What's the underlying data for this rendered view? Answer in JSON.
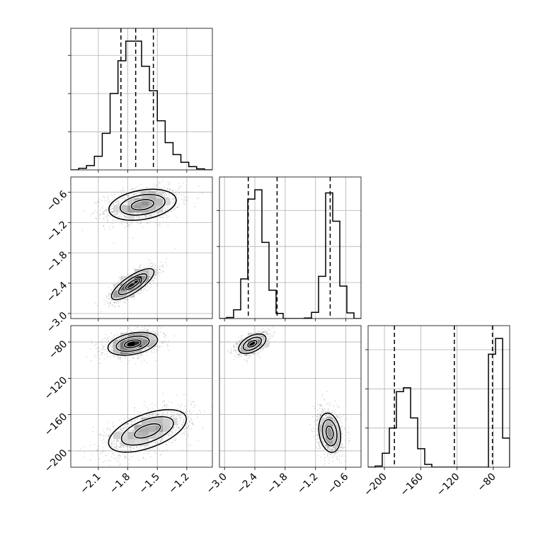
{
  "chart_data": {
    "type": "corner",
    "grid": true,
    "parameters": [
      {
        "ticks": [
          -2.1,
          -1.8,
          -1.5,
          -1.2
        ],
        "tick_labels": [
          "−2.1",
          "−1.8",
          "−1.5",
          "−1.2"
        ],
        "range": [
          -2.38,
          -0.94
        ],
        "quantiles": [
          -1.87,
          -1.72,
          -1.54
        ],
        "histogram": {
          "edges": [
            -2.38,
            -2.3,
            -2.22,
            -2.14,
            -2.06,
            -1.98,
            -1.9,
            -1.82,
            -1.74,
            -1.66,
            -1.58,
            -1.5,
            -1.42,
            -1.34,
            -1.26,
            -1.18,
            -1.1,
            -1.02,
            -0.94
          ],
          "counts": [
            0,
            3,
            8,
            25,
            67,
            140,
            200,
            236,
            236,
            190,
            145,
            90,
            50,
            28,
            14,
            6,
            2,
            0
          ]
        }
      },
      {
        "ticks": [
          -3.0,
          -2.4,
          -1.8,
          -1.2,
          -0.6
        ],
        "tick_labels": [
          "−3.0",
          "−2.4",
          "−1.8",
          "−1.2",
          "−0.6"
        ],
        "range": [
          -3.1,
          -0.3
        ],
        "quantiles": [
          -2.53,
          -1.96,
          -0.91
        ],
        "histogram": {
          "edges": [
            -3.1,
            -2.96,
            -2.82,
            -2.68,
            -2.54,
            -2.4,
            -2.26,
            -2.12,
            -1.98,
            -1.84,
            -1.7,
            -1.56,
            -1.42,
            -1.28,
            -1.14,
            -1.0,
            -0.86,
            -0.72,
            -0.58,
            -0.44,
            -0.3
          ],
          "counts": [
            0,
            2,
            17,
            77,
            232,
            250,
            148,
            55,
            10,
            0,
            0,
            0,
            1,
            12,
            82,
            244,
            189,
            63,
            11,
            0
          ]
        }
      },
      {
        "ticks": [
          -200,
          -160,
          -120,
          -80
        ],
        "tick_labels": [
          "−200",
          "−160",
          "−120",
          "−80"
        ],
        "range": [
          -218,
          -62
        ],
        "quantiles": [
          -189,
          -123,
          -81
        ],
        "histogram": {
          "edges": [
            -218,
            -210.2,
            -202.4,
            -194.6,
            -186.8,
            -179,
            -171.2,
            -163.4,
            -155.6,
            -147.8,
            -140,
            -132.2,
            -124.4,
            -116.6,
            -108.8,
            -101,
            -93.2,
            -85.4,
            -77.6,
            -69.8,
            -62
          ],
          "counts": [
            0,
            2,
            25,
            70,
            135,
            142,
            88,
            33,
            5,
            0,
            0,
            0,
            0,
            0,
            0,
            0,
            0,
            202,
            230,
            52
          ]
        }
      }
    ],
    "pair_clusters": [
      {
        "x_param": 0,
        "y_param": 1,
        "clusters": [
          {
            "mean": [
              -1.65,
              -0.85
            ],
            "sd": [
              0.19,
              0.17
            ],
            "rho": 0.3,
            "weight": 0.55
          },
          {
            "mean": [
              -1.75,
              -2.42
            ],
            "sd": [
              0.12,
              0.17
            ],
            "rho": 0.78,
            "weight": 0.45
          }
        ]
      },
      {
        "x_param": 0,
        "y_param": 2,
        "clusters": [
          {
            "mean": [
              -1.75,
              -82
            ],
            "sd": [
              0.14,
              7
            ],
            "rho": 0.35,
            "weight": 0.45
          },
          {
            "mean": [
              -1.6,
              -178
            ],
            "sd": [
              0.22,
              13
            ],
            "rho": 0.55,
            "weight": 0.55
          }
        ]
      },
      {
        "x_param": 1,
        "y_param": 2,
        "clusters": [
          {
            "mean": [
              -2.45,
              -82
            ],
            "sd": [
              0.15,
              6
            ],
            "rho": 0.5,
            "weight": 0.45
          },
          {
            "mean": [
              -0.92,
              -180
            ],
            "sd": [
              0.12,
              12
            ],
            "rho": -0.2,
            "weight": 0.55
          }
        ]
      }
    ]
  }
}
